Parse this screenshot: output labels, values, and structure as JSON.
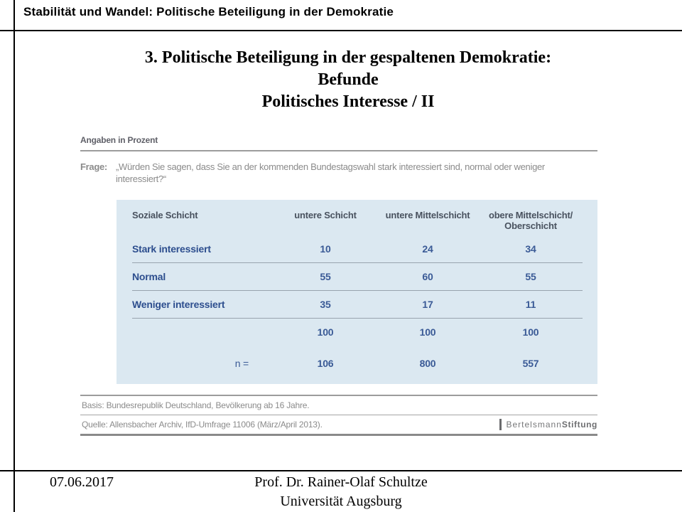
{
  "header": {
    "title": "Stabilität und Wandel: Politische Beteiligung in der Demokratie"
  },
  "slide_title": {
    "lines": [
      "3. Politische Beteiligung in der gespaltenen Demokratie:",
      "Befunde",
      "Politisches Interesse / II"
    ]
  },
  "figure": {
    "units_note": "Angaben in Prozent",
    "question_label": "Frage:",
    "question_text": "„Würden Sie sagen, dass Sie an der kommenden Bundestagswahl stark interessiert sind, normal oder weniger interessiert?“",
    "basis": "Basis: Bundesrepublik Deutschland, Bevölkerung ab 16 Jahre.",
    "source": "Quelle: Allensbacher Archiv, IfD-Umfrage 11006 (März/April 2013).",
    "logo_regular": "Bertelsmann",
    "logo_bold": "Stiftung",
    "colors": {
      "table_background": "#dbe8f1",
      "table_label_text": "#2d4e8e",
      "table_value_text": "#3a5a96",
      "table_header_text": "#49525f",
      "muted_gray_text": "#8b8b8b"
    }
  },
  "chart_data": {
    "type": "table",
    "title": "Politisches Interesse an der kommenden Bundestagswahl nach sozialer Schicht (Angaben in Prozent)",
    "columns": [
      "Soziale Schicht",
      "untere Schicht",
      "untere Mittelschicht",
      "obere Mittelschicht/ Oberschicht"
    ],
    "rows": [
      {
        "label": "Stark interessiert",
        "values": [
          10,
          24,
          34
        ]
      },
      {
        "label": "Normal",
        "values": [
          55,
          60,
          55
        ]
      },
      {
        "label": "Weniger interessiert",
        "values": [
          35,
          17,
          11
        ]
      },
      {
        "label": "",
        "values": [
          100,
          100,
          100
        ]
      },
      {
        "label": "n =",
        "values": [
          106,
          800,
          557
        ]
      }
    ]
  },
  "footer": {
    "date": "07.06.2017",
    "author": "Prof. Dr. Rainer-Olaf Schultze",
    "institution": "Universität Augsburg"
  }
}
